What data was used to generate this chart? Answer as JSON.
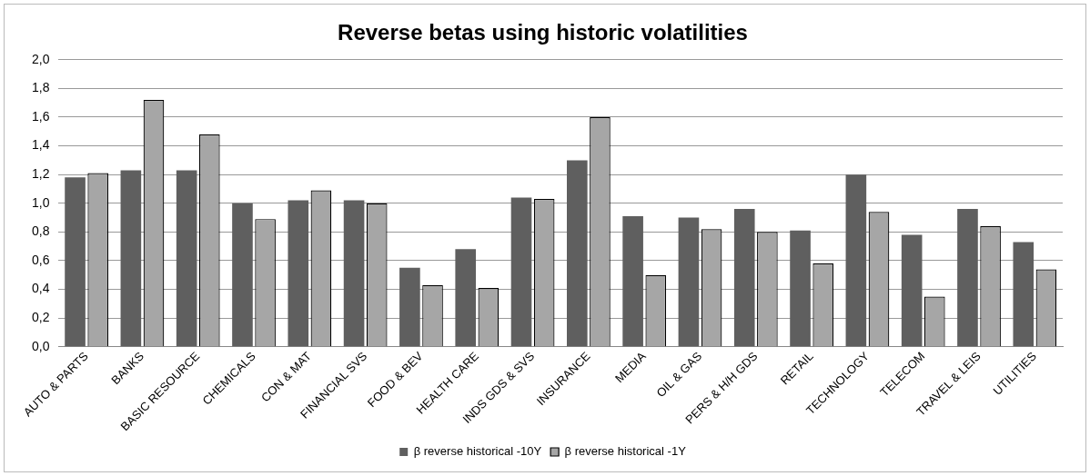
{
  "chart_data": {
    "type": "bar",
    "title": "Reverse betas using historic volatilities",
    "categories": [
      "AUTO & PARTS",
      "BANKS",
      "BASIC RESOURCE",
      "CHEMICALS",
      "CON & MAT",
      "FINANCIAL SVS",
      "FOOD & BEV",
      "HEALTH CARE",
      "INDS GDS & SVS",
      "INSURANCE",
      "MEDIA",
      "OIL & GAS",
      "PERS & H/H GDS",
      "RETAIL",
      "TECHNOLOGY",
      "TELECOM",
      "TRAVEL & LEIS",
      "UTILITIES"
    ],
    "series": [
      {
        "name": "β reverse historical -10Y",
        "color": "#5f5f5f",
        "values": [
          1.18,
          1.23,
          1.23,
          1.0,
          1.02,
          1.02,
          0.55,
          0.68,
          1.04,
          1.3,
          0.91,
          0.9,
          0.96,
          0.81,
          1.2,
          0.78,
          0.96,
          0.73
        ]
      },
      {
        "name": "β reverse historical -1Y",
        "color": "#a6a6a6",
        "values": [
          1.21,
          1.72,
          1.48,
          0.89,
          1.09,
          1.0,
          0.43,
          0.41,
          1.03,
          1.6,
          0.5,
          0.82,
          0.8,
          0.58,
          0.94,
          0.35,
          0.84,
          0.54
        ]
      }
    ],
    "ylim": [
      0,
      2
    ],
    "yticks": [
      {
        "value": 0,
        "label": "0,0"
      },
      {
        "value": 0.2,
        "label": "0,2"
      },
      {
        "value": 0.4,
        "label": "0,4"
      },
      {
        "value": 0.6,
        "label": "0,6"
      },
      {
        "value": 0.8,
        "label": "0,8"
      },
      {
        "value": 1,
        "label": "1,0"
      },
      {
        "value": 1.2,
        "label": "1,2"
      },
      {
        "value": 1.4,
        "label": "1,4"
      },
      {
        "value": 1.6,
        "label": "1,6"
      },
      {
        "value": 1.8,
        "label": "1,8"
      },
      {
        "value": 2,
        "label": "2,0"
      }
    ],
    "grid": "y",
    "legend": "bottom"
  }
}
